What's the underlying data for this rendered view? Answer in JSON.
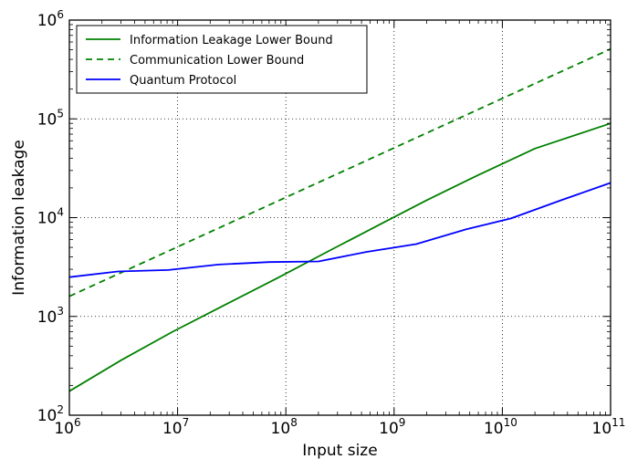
{
  "chart_data": {
    "type": "line",
    "title": "",
    "xlabel": "Input size",
    "ylabel": "Information leakage",
    "xscale": "log",
    "yscale": "log",
    "xlim": [
      1000000,
      100000000000
    ],
    "ylim": [
      100,
      1000000
    ],
    "grid": true,
    "legend_position": "top-left",
    "x_ticks": [
      {
        "base": "10",
        "exp": "6",
        "value": 1000000
      },
      {
        "base": "10",
        "exp": "7",
        "value": 10000000
      },
      {
        "base": "10",
        "exp": "8",
        "value": 100000000
      },
      {
        "base": "10",
        "exp": "9",
        "value": 1000000000
      },
      {
        "base": "10",
        "exp": "10",
        "value": 10000000000
      },
      {
        "base": "10",
        "exp": "11",
        "value": 100000000000
      }
    ],
    "y_ticks": [
      {
        "base": "10",
        "exp": "2",
        "value": 100
      },
      {
        "base": "10",
        "exp": "3",
        "value": 1000
      },
      {
        "base": "10",
        "exp": "4",
        "value": 10000
      },
      {
        "base": "10",
        "exp": "5",
        "value": 100000
      },
      {
        "base": "10",
        "exp": "6",
        "value": 1000000
      }
    ],
    "series": [
      {
        "name": "Information Leakage Lower Bound",
        "color": "#008000",
        "style": "solid",
        "x": [
          1000000,
          3000000,
          9000000,
          27000000,
          81000000,
          250000000,
          750000000,
          2000000000,
          6000000000,
          20000000000,
          100000000000
        ],
        "y": [
          175,
          360,
          700,
          1300,
          2400,
          4600,
          8600,
          15000,
          27000,
          50000,
          90000
        ]
      },
      {
        "name": "Communication Lower Bound",
        "color": "#008000",
        "style": "dashed",
        "x": [
          1000000,
          100000000000
        ],
        "y": [
          1600,
          510000
        ]
      },
      {
        "name": "Quantum Protocol",
        "color": "#0000ff",
        "style": "solid",
        "x": [
          1000000,
          2800000,
          8200000,
          24000000,
          70000000,
          200000000,
          560000000,
          1600000000,
          4600000000,
          12000000000,
          35000000000,
          100000000000
        ],
        "y": [
          2500,
          2850,
          2950,
          3350,
          3550,
          3600,
          4500,
          5400,
          7600,
          9800,
          15000,
          22500
        ]
      }
    ]
  }
}
